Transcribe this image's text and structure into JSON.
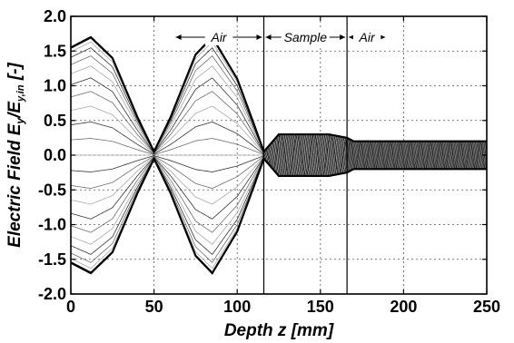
{
  "chart_data": {
    "type": "line",
    "title": "",
    "xlabel": "Depth z [mm]",
    "ylabel": "Electric Field E",
    "ylabel_sub1": "y",
    "ylabel_mid": "/E",
    "ylabel_sub2": "y,in",
    "ylabel_unit": " [-]",
    "xlim": [
      0,
      250
    ],
    "ylim": [
      -2.0,
      2.0
    ],
    "xticks": [
      0,
      50,
      100,
      150,
      200,
      250
    ],
    "yticks": [
      -2.0,
      -1.5,
      -1.0,
      -0.5,
      0.0,
      0.5,
      1.0,
      1.5,
      2.0
    ],
    "xtick_labels": [
      "0",
      "50",
      "100",
      "150",
      "200",
      "250"
    ],
    "ytick_labels": [
      "-2.0",
      "-1.5",
      "-1.0",
      "-0.5",
      "0.0",
      "0.5",
      "1.0",
      "1.5",
      "2.0"
    ],
    "grid": true,
    "boundaries": [
      116,
      166
    ],
    "regions": [
      {
        "label": "Air",
        "x_from": 62,
        "x_to": 116
      },
      {
        "label": "Sample",
        "x_from": 116,
        "x_to": 166
      },
      {
        "label": "Air",
        "x_from": 166,
        "x_to": 190
      }
    ],
    "envelope": {
      "x": [
        0,
        12,
        25,
        40,
        50,
        60,
        75,
        85,
        100,
        110,
        116,
        125,
        135,
        145,
        155,
        166,
        170,
        200,
        250
      ],
      "max": [
        1.55,
        1.7,
        1.4,
        0.55,
        0.05,
        0.55,
        1.45,
        1.7,
        1.1,
        0.45,
        0.05,
        0.3,
        0.3,
        0.3,
        0.3,
        0.25,
        0.2,
        0.2,
        0.2
      ],
      "min": [
        -1.55,
        -1.7,
        -1.4,
        -0.55,
        -0.05,
        -0.55,
        -1.45,
        -1.7,
        -1.1,
        -0.45,
        -0.05,
        -0.3,
        -0.3,
        -0.3,
        -0.3,
        -0.25,
        -0.2,
        -0.2,
        -0.2
      ]
    }
  }
}
